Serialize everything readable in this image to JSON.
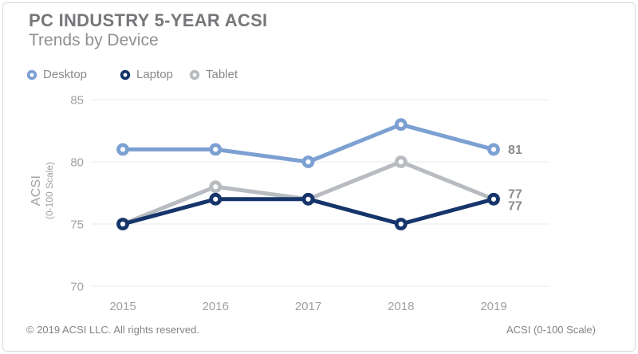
{
  "header": {
    "title": "PC INDUSTRY 5-YEAR ACSI",
    "subtitle": "Trends by Device"
  },
  "footer": {
    "copyright": "© 2019 ACSI LLC. All rights reserved.",
    "scale_note": "ACSI (0-100 Scale)"
  },
  "colors": {
    "desktop": "#7ca0d2",
    "laptop": "#16356b",
    "tablet": "#b8bcc0",
    "gridline": "#eaeaeb",
    "tick_text": "#9ea0a3",
    "value_label": "#8a8c8e"
  },
  "chart_data": {
    "type": "line",
    "title": "PC INDUSTRY 5-YEAR ACSI",
    "subtitle": "Trends by Device",
    "categories": [
      "2015",
      "2016",
      "2017",
      "2018",
      "2019"
    ],
    "series": [
      {
        "name": "Desktop",
        "color": "#7ca0d2",
        "values": [
          81,
          81,
          80,
          83,
          81
        ],
        "end_label": "81",
        "label_dy": 0
      },
      {
        "name": "Laptop",
        "color": "#16356b",
        "values": [
          75,
          77,
          77,
          75,
          77
        ],
        "end_label": "77",
        "label_dy": 8
      },
      {
        "name": "Tablet",
        "color": "#b8bcc0",
        "values": [
          75,
          78,
          77,
          80,
          77
        ],
        "end_label": "77",
        "label_dy": -7
      }
    ],
    "ylabel": "ACSI",
    "ylabel_sub": "(0-100 Scale)",
    "yticks": [
      85,
      80,
      75,
      70
    ],
    "ylim": [
      70,
      85
    ],
    "xlabel": "",
    "grid": true,
    "legend_position": "top"
  }
}
